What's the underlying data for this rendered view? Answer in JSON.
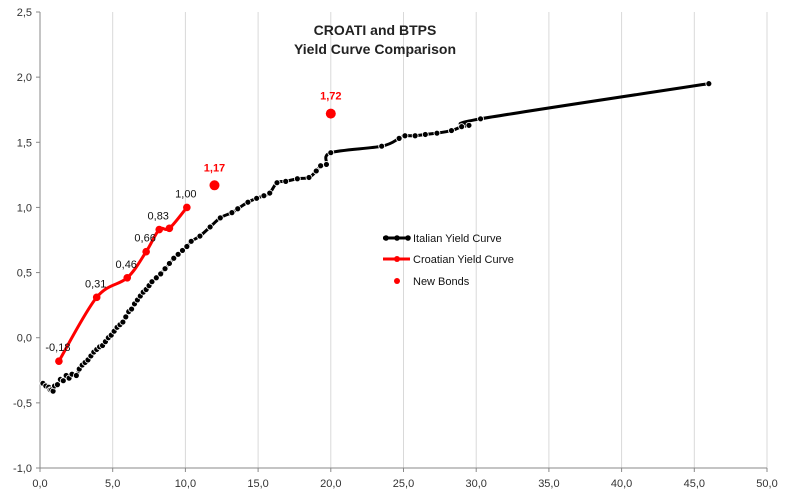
{
  "chart_data": {
    "type": "line",
    "title": "CROATI and BTPS",
    "subtitle": "Yield Curve Comparison",
    "xlabel": "",
    "ylabel": "",
    "xlim": [
      0,
      50
    ],
    "ylim": [
      -1.0,
      2.5
    ],
    "x_ticks": [
      "0,0",
      "5,0",
      "10,0",
      "15,0",
      "20,0",
      "25,0",
      "30,0",
      "35,0",
      "40,0",
      "45,0",
      "50,0"
    ],
    "y_ticks": [
      "-1,0",
      "-0,5",
      "0,0",
      "0,5",
      "1,0",
      "1,5",
      "2,0",
      "2,5"
    ],
    "grid": "vertical",
    "legend_position": "center-right",
    "series": [
      {
        "name": "Italian Yield Curve",
        "color": "#000000",
        "points": [
          [
            0.2,
            -0.35
          ],
          [
            0.4,
            -0.37
          ],
          [
            0.6,
            -0.38
          ],
          [
            0.7,
            -0.4
          ],
          [
            0.8,
            -0.4
          ],
          [
            0.9,
            -0.41
          ],
          [
            1.0,
            -0.37
          ],
          [
            1.2,
            -0.36
          ],
          [
            1.4,
            -0.32
          ],
          [
            1.6,
            -0.33
          ],
          [
            1.8,
            -0.29
          ],
          [
            2.0,
            -0.31
          ],
          [
            2.2,
            -0.28
          ],
          [
            2.5,
            -0.29
          ],
          [
            2.7,
            -0.24
          ],
          [
            2.9,
            -0.21
          ],
          [
            3.1,
            -0.19
          ],
          [
            3.3,
            -0.17
          ],
          [
            3.5,
            -0.14
          ],
          [
            3.7,
            -0.11
          ],
          [
            3.9,
            -0.09
          ],
          [
            4.1,
            -0.07
          ],
          [
            4.3,
            -0.06
          ],
          [
            4.5,
            -0.03
          ],
          [
            4.7,
            0.0
          ],
          [
            4.9,
            0.02
          ],
          [
            5.1,
            0.05
          ],
          [
            5.3,
            0.08
          ],
          [
            5.5,
            0.1
          ],
          [
            5.7,
            0.12
          ],
          [
            5.9,
            0.16
          ],
          [
            6.1,
            0.2
          ],
          [
            6.3,
            0.22
          ],
          [
            6.5,
            0.26
          ],
          [
            6.7,
            0.29
          ],
          [
            6.9,
            0.32
          ],
          [
            7.1,
            0.35
          ],
          [
            7.3,
            0.37
          ],
          [
            7.5,
            0.4
          ],
          [
            7.7,
            0.43
          ],
          [
            8.0,
            0.46
          ],
          [
            8.3,
            0.49
          ],
          [
            8.6,
            0.53
          ],
          [
            8.9,
            0.57
          ],
          [
            9.2,
            0.61
          ],
          [
            9.5,
            0.64
          ],
          [
            9.8,
            0.67
          ],
          [
            10.1,
            0.7
          ],
          [
            10.4,
            0.74
          ],
          [
            11.0,
            0.78
          ],
          [
            11.7,
            0.85
          ],
          [
            12.4,
            0.92
          ],
          [
            13.2,
            0.96
          ],
          [
            13.6,
            0.99
          ],
          [
            14.3,
            1.04
          ],
          [
            14.9,
            1.07
          ],
          [
            15.4,
            1.09
          ],
          [
            15.8,
            1.11
          ],
          [
            16.3,
            1.19
          ],
          [
            16.9,
            1.2
          ],
          [
            17.7,
            1.22
          ],
          [
            18.5,
            1.23
          ],
          [
            19.0,
            1.28
          ],
          [
            19.3,
            1.32
          ],
          [
            19.7,
            1.33
          ],
          [
            20.0,
            1.42
          ],
          [
            23.5,
            1.47
          ],
          [
            24.7,
            1.53
          ],
          [
            25.1,
            1.55
          ],
          [
            25.8,
            1.55
          ],
          [
            26.5,
            1.56
          ],
          [
            27.3,
            1.57
          ],
          [
            28.3,
            1.59
          ],
          [
            29.0,
            1.62
          ],
          [
            29.5,
            1.63
          ],
          [
            30.3,
            1.68
          ],
          [
            46.0,
            1.95
          ]
        ]
      },
      {
        "name": "Croatian Yield Curve",
        "color": "#ff0000",
        "points": [
          [
            1.3,
            -0.18
          ],
          [
            3.9,
            0.31
          ],
          [
            6.0,
            0.46
          ],
          [
            7.3,
            0.66
          ],
          [
            8.2,
            0.83
          ],
          [
            8.9,
            0.84
          ],
          [
            10.1,
            1.0
          ]
        ],
        "data_labels": [
          "-0,18",
          "0,31",
          "0,46",
          "0,66",
          "0,83",
          "",
          "1,00"
        ]
      },
      {
        "name": "New Bonds",
        "color": "#ff0000",
        "points": [
          [
            12.0,
            1.17
          ],
          [
            20.0,
            1.72
          ]
        ],
        "data_labels": [
          "1,17",
          "1,72"
        ]
      }
    ]
  }
}
